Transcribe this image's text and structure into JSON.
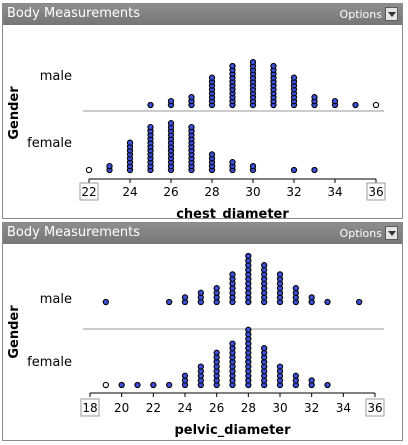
{
  "panels": [
    {
      "title": "Body Measurements",
      "options_label": "Options"
    },
    {
      "title": "Body Measurements",
      "options_label": "Options"
    }
  ],
  "colors": {
    "titlebar": "#858585",
    "dot_fill": "#3c4fd8",
    "outlier_fill": "#ffffff",
    "separator": "#9a9a9a"
  },
  "chart_data": [
    {
      "type": "scatter",
      "subtype": "dot_plot",
      "xlabel": "chest_diameter",
      "ylabel": "Gender",
      "xlim": [
        22,
        36
      ],
      "ticks": [
        22,
        24,
        26,
        28,
        30,
        32,
        34,
        36
      ],
      "boxed_ticks": [
        22,
        36
      ],
      "groups": [
        "male",
        "female"
      ],
      "counts": {
        "male": {
          "25": 1,
          "26": 2,
          "27": 3,
          "28": 8,
          "29": 11,
          "30": 12,
          "31": 11,
          "32": 8,
          "33": 3,
          "34": 2,
          "35": 1,
          "36": 1
        },
        "female": {
          "22": 1,
          "23": 2,
          "24": 8,
          "25": 12,
          "26": 13,
          "27": 12,
          "28": 5,
          "29": 3,
          "30": 2,
          "32": 1,
          "33": 1
        }
      }
    },
    {
      "type": "scatter",
      "subtype": "dot_plot",
      "xlabel": "pelvic_diameter",
      "ylabel": "Gender",
      "xlim": [
        18,
        36
      ],
      "ticks": [
        18,
        20,
        22,
        24,
        26,
        28,
        30,
        32,
        34,
        36
      ],
      "boxed_ticks": [
        18,
        36
      ],
      "groups": [
        "male",
        "female"
      ],
      "counts": {
        "male": {
          "19": 1,
          "23": 1,
          "24": 2,
          "25": 3,
          "26": 4,
          "27": 7,
          "28": 11,
          "29": 9,
          "30": 7,
          "31": 4,
          "32": 2,
          "33": 1,
          "35": 1
        },
        "female": {
          "19": 1,
          "20": 1,
          "21": 1,
          "22": 1,
          "23": 1,
          "24": 3,
          "25": 5,
          "26": 8,
          "27": 10,
          "28": 13,
          "29": 9,
          "30": 5,
          "31": 3,
          "32": 2,
          "33": 1
        }
      }
    }
  ]
}
